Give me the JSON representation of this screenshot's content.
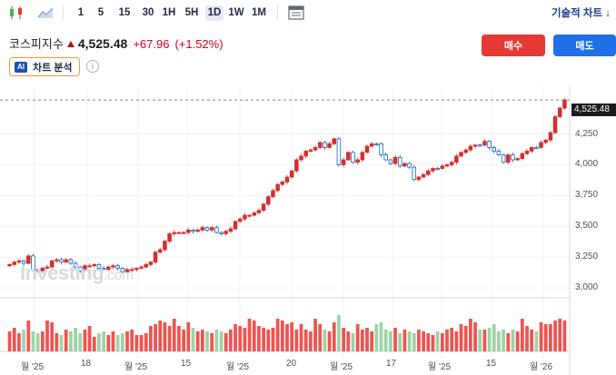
{
  "toolbar": {
    "timeframes": [
      "1",
      "5",
      "15",
      "30",
      "1H",
      "5H",
      "1D",
      "1W",
      "1M"
    ],
    "active": "1D",
    "technical_chart_label": "기술적 차트 ↓"
  },
  "quote": {
    "symbol": "코스피지수",
    "price": "4,525.48",
    "change": "+67.96",
    "change_pct": "(+1.52%)"
  },
  "actions": {
    "buy_label": "매수",
    "sell_label": "매도"
  },
  "ai_chip": {
    "badge": "AI",
    "label": "차트 분석"
  },
  "info_icon_text": "i",
  "watermark": {
    "brand": "Investing",
    "suffix": ".com"
  },
  "colors": {
    "up": "#d32f2f",
    "down": "#1565c0",
    "vol_up": "#ef5350",
    "vol_down": "#9fd3a6",
    "accent": "#e53935"
  },
  "chart_data": {
    "type": "candlestick",
    "y_ticks": [
      "4,250",
      "4,000",
      "3,750",
      "3,500",
      "3,250",
      "3,000"
    ],
    "y_tick_values": [
      4250,
      4000,
      3750,
      3500,
      3250,
      3000
    ],
    "x_ticks": [
      "월 '25",
      "18",
      "월 '25",
      "15",
      "월 '25",
      "20",
      "월 '25",
      "17",
      "월 '25",
      "15",
      "월 '26"
    ],
    "last_price_label": "4,525.48",
    "last_price": 4525.48,
    "ylim": [
      2920,
      4600
    ],
    "grid": true,
    "close": [
      3190,
      3210,
      3220,
      3200,
      3260,
      3150,
      3140,
      3160,
      3170,
      3220,
      3230,
      3210,
      3230,
      3200,
      3170,
      3140,
      3180,
      3180,
      3190,
      3160,
      3150,
      3170,
      3180,
      3160,
      3130,
      3150,
      3150,
      3160,
      3170,
      3190,
      3210,
      3290,
      3310,
      3380,
      3440,
      3450,
      3450,
      3450,
      3470,
      3460,
      3470,
      3490,
      3470,
      3490,
      3450,
      3440,
      3460,
      3480,
      3540,
      3560,
      3590,
      3590,
      3610,
      3630,
      3680,
      3740,
      3790,
      3840,
      3860,
      3900,
      3950,
      4040,
      4070,
      4110,
      4120,
      4140,
      4180,
      4140,
      4170,
      4210,
      4000,
      4040,
      4100,
      4020,
      4040,
      4100,
      4150,
      4170,
      4170,
      4080,
      4040,
      4010,
      4060,
      3990,
      4010,
      3980,
      3880,
      3900,
      3920,
      3950,
      3970,
      3970,
      3990,
      4000,
      4020,
      4070,
      4100,
      4120,
      4150,
      4160,
      4160,
      4190,
      4140,
      4110,
      4080,
      4020,
      4080,
      4040,
      4050,
      4090,
      4110,
      4140,
      4140,
      4180,
      4200,
      4260,
      4390,
      4460,
      4525
    ],
    "up": [
      1,
      1,
      1,
      0,
      1,
      0,
      0,
      1,
      1,
      1,
      1,
      0,
      1,
      0,
      0,
      0,
      1,
      1,
      1,
      0,
      0,
      1,
      1,
      0,
      0,
      1,
      1,
      1,
      1,
      1,
      1,
      1,
      1,
      1,
      1,
      1,
      1,
      1,
      1,
      0,
      1,
      1,
      0,
      1,
      0,
      0,
      1,
      1,
      1,
      1,
      1,
      1,
      1,
      1,
      1,
      1,
      1,
      1,
      1,
      1,
      1,
      1,
      1,
      1,
      1,
      1,
      1,
      0,
      1,
      1,
      0,
      1,
      1,
      0,
      1,
      1,
      1,
      1,
      0,
      0,
      0,
      0,
      1,
      0,
      1,
      0,
      0,
      1,
      1,
      1,
      1,
      0,
      1,
      1,
      1,
      1,
      1,
      1,
      1,
      1,
      0,
      1,
      0,
      0,
      0,
      0,
      1,
      0,
      1,
      1,
      1,
      1,
      0,
      1,
      1,
      1,
      1,
      1,
      1
    ],
    "volume": [
      0.55,
      0.65,
      0.5,
      0.6,
      0.85,
      0.55,
      0.5,
      0.55,
      0.85,
      0.8,
      0.5,
      0.45,
      0.6,
      0.55,
      0.65,
      0.5,
      0.6,
      0.7,
      0.4,
      0.5,
      0.55,
      0.45,
      0.55,
      0.45,
      0.5,
      0.55,
      0.6,
      0.45,
      0.45,
      0.5,
      0.7,
      0.75,
      0.85,
      0.8,
      0.7,
      0.9,
      0.7,
      0.6,
      0.8,
      0.65,
      0.55,
      0.6,
      0.55,
      0.5,
      0.6,
      0.55,
      0.5,
      0.6,
      0.75,
      0.7,
      0.65,
      0.9,
      0.85,
      0.7,
      0.65,
      0.6,
      0.65,
      0.9,
      0.85,
      0.75,
      0.8,
      0.6,
      0.75,
      0.6,
      0.55,
      0.9,
      0.75,
      0.6,
      0.55,
      0.8,
      1,
      0.65,
      0.55,
      0.5,
      0.75,
      0.6,
      0.65,
      0.55,
      0.75,
      0.8,
      0.6,
      0.55,
      0.65,
      0.5,
      0.6,
      0.55,
      0.5,
      0.6,
      0.55,
      0.5,
      0.45,
      0.55,
      0.5,
      0.6,
      0.65,
      0.55,
      0.75,
      0.7,
      0.9,
      0.8,
      0.6,
      0.6,
      0.65,
      0.75,
      0.55,
      0.6,
      0.5,
      0.6,
      0.55,
      0.9,
      0.7,
      0.6,
      0.55,
      0.8,
      0.75,
      0.75,
      0.85,
      0.9,
      0.85
    ]
  }
}
